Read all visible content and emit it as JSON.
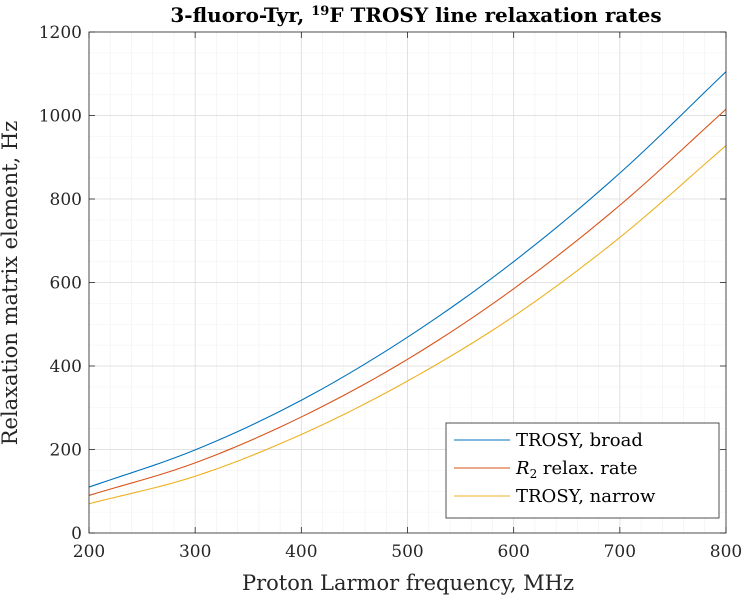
{
  "chart_data": {
    "type": "line",
    "title": "3-fluoro-Tyr, ¹⁹F TROSY line relaxation rates",
    "title_parts": {
      "prefix": "3-fluoro-Tyr, ",
      "superscript": "19",
      "suffix": "F TROSY line relaxation rates"
    },
    "xlabel": "Proton Larmor frequency, MHz",
    "ylabel": "Relaxation matrix element, Hz",
    "xlim": [
      200,
      800
    ],
    "ylim": [
      0,
      1200
    ],
    "xticks": [
      200,
      300,
      400,
      500,
      600,
      700,
      800
    ],
    "yticks": [
      0,
      200,
      400,
      600,
      800,
      1000,
      1200
    ],
    "grid": true,
    "minor_grid": true,
    "legend_position": "bottom-right",
    "x": [
      200,
      300,
      400,
      500,
      600,
      700,
      800
    ],
    "series": [
      {
        "name": "TROSY, broad",
        "color": "#0072BD",
        "values": [
          110,
          199,
          318,
          469,
          650,
          862,
          1105
        ]
      },
      {
        "name": "R2 relax. rate",
        "legend_parts": {
          "italic": "R",
          "subscript": "2",
          "rest": " relax. rate"
        },
        "color": "#D95319",
        "values": [
          90,
          168,
          278,
          416,
          585,
          785,
          1015
        ]
      },
      {
        "name": "TROSY, narrow",
        "color": "#EDB120",
        "values": [
          70,
          136,
          236,
          364,
          519,
          708,
          928
        ]
      }
    ]
  }
}
